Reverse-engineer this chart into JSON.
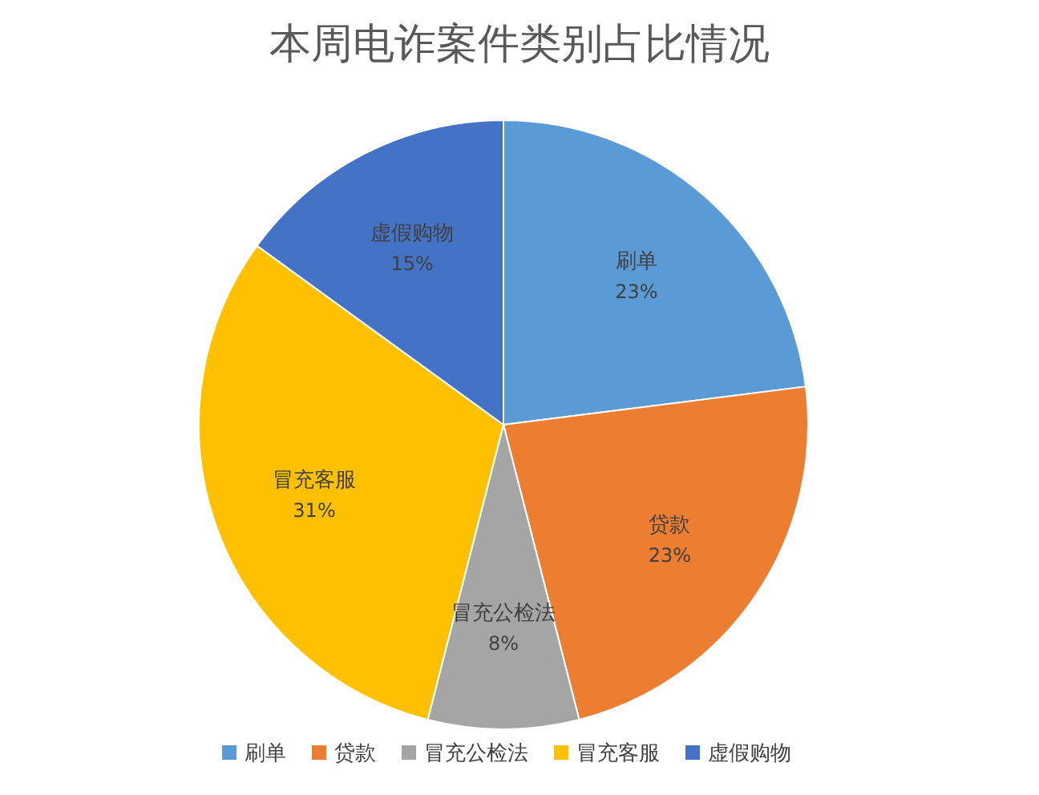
{
  "chart_data": {
    "type": "pie",
    "title": "本周电诈案件类别占比情况",
    "categories": [
      "刷单",
      "贷款",
      "冒充公检法",
      "冒充客服",
      "虚假购物"
    ],
    "values": [
      23,
      23,
      8,
      31,
      15
    ],
    "colors": [
      "#5b9bd5",
      "#ed7d31",
      "#a5a5a5",
      "#ffc000",
      "#4472c4"
    ],
    "value_labels": [
      "23%",
      "23%",
      "8%",
      "31%",
      "15%"
    ],
    "legend": "bottom"
  }
}
